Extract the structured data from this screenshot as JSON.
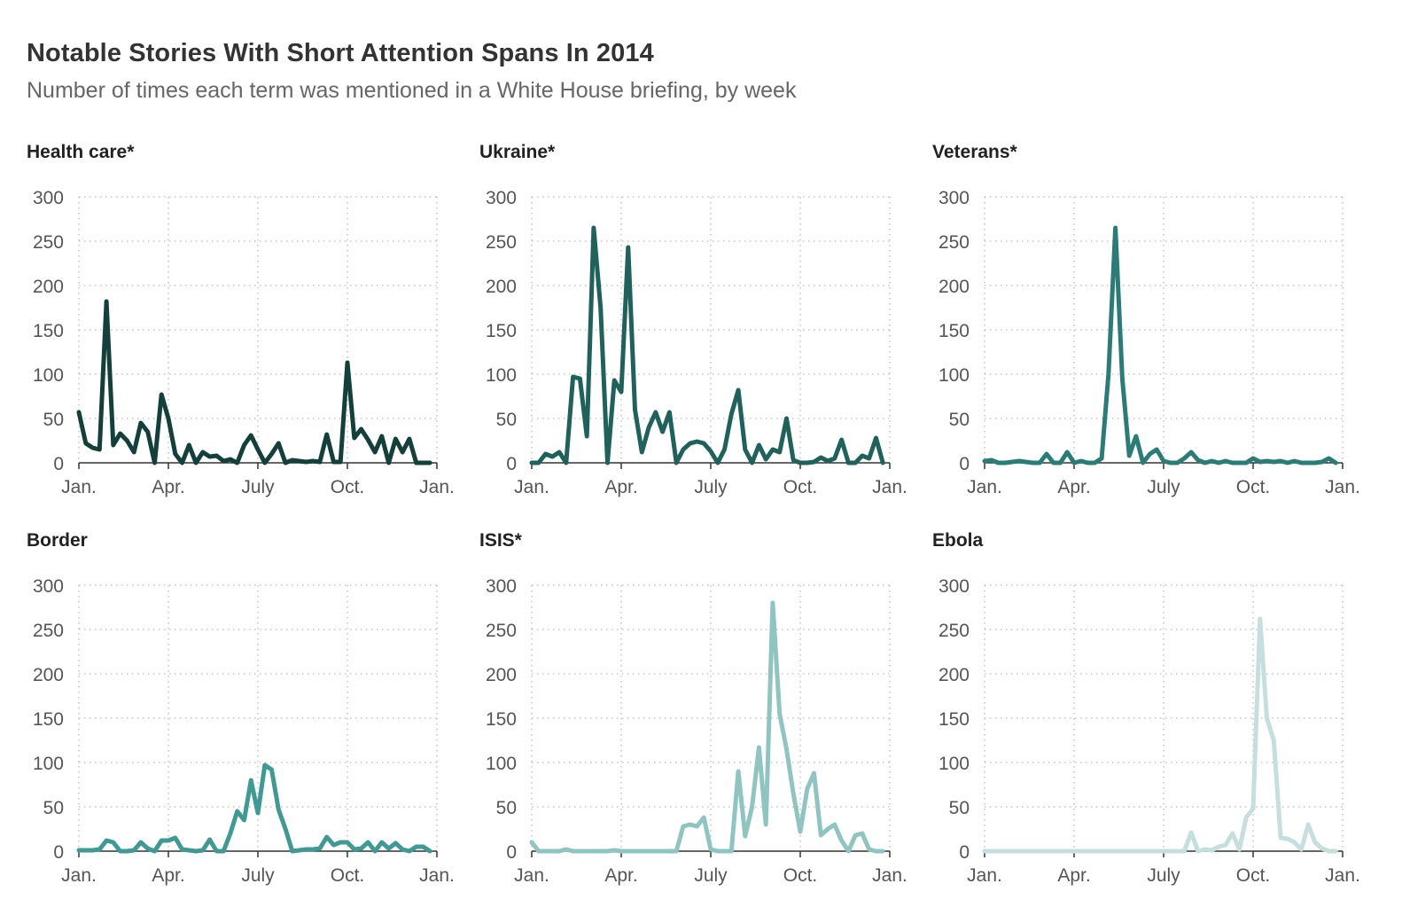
{
  "title": "Notable Stories With Short Attention Spans In 2014",
  "subtitle": "Number of times each term was mentioned in a White House briefing, by week",
  "chart_data": [
    {
      "type": "line",
      "title": "Health care*",
      "color": "#14403b",
      "ylim": [
        0,
        300
      ],
      "yticks": [
        "0",
        "50",
        "100",
        "150",
        "200",
        "250",
        "300"
      ],
      "xticks": [
        "Jan.",
        "Apr.",
        "July",
        "Oct.",
        "Jan."
      ],
      "x_unit": "week of 2014",
      "x": [
        0,
        1,
        2,
        3,
        4,
        5,
        6,
        7,
        8,
        9,
        10,
        11,
        12,
        13,
        14,
        15,
        16,
        17,
        18,
        19,
        20,
        21,
        22,
        23,
        24,
        25,
        26,
        27,
        28,
        29,
        30,
        31,
        32,
        33,
        34,
        35,
        36,
        37,
        38,
        39,
        40,
        41,
        42,
        43,
        44,
        45,
        46,
        47,
        48,
        49,
        50,
        51
      ],
      "values": [
        57,
        22,
        17,
        15,
        182,
        20,
        33,
        25,
        12,
        45,
        35,
        0,
        77,
        50,
        10,
        0,
        20,
        0,
        12,
        7,
        8,
        2,
        4,
        0,
        20,
        31,
        15,
        0,
        10,
        22,
        0,
        3,
        2,
        1,
        2,
        1,
        32,
        1,
        1,
        113,
        28,
        38,
        26,
        12,
        30,
        0,
        27,
        12,
        27,
        0,
        0,
        0
      ]
    },
    {
      "type": "line",
      "title": "Ukraine*",
      "color": "#1e625b",
      "ylim": [
        0,
        300
      ],
      "yticks": [
        "0",
        "50",
        "100",
        "150",
        "200",
        "250",
        "300"
      ],
      "xticks": [
        "Jan.",
        "Apr.",
        "July",
        "Oct.",
        "Jan."
      ],
      "x_unit": "week of 2014",
      "x": [
        0,
        1,
        2,
        3,
        4,
        5,
        6,
        7,
        8,
        9,
        10,
        11,
        12,
        13,
        14,
        15,
        16,
        17,
        18,
        19,
        20,
        21,
        22,
        23,
        24,
        25,
        26,
        27,
        28,
        29,
        30,
        31,
        32,
        33,
        34,
        35,
        36,
        37,
        38,
        39,
        40,
        41,
        42,
        43,
        44,
        45,
        46,
        47,
        48,
        49,
        50,
        51
      ],
      "values": [
        0,
        0,
        10,
        7,
        12,
        0,
        97,
        95,
        30,
        265,
        175,
        0,
        93,
        80,
        243,
        60,
        12,
        40,
        57,
        35,
        57,
        0,
        15,
        22,
        24,
        22,
        13,
        0,
        15,
        55,
        82,
        15,
        0,
        20,
        4,
        15,
        12,
        50,
        3,
        0,
        0,
        1,
        6,
        2,
        5,
        26,
        0,
        0,
        8,
        5,
        28,
        0
      ]
    },
    {
      "type": "line",
      "title": "Veterans*",
      "color": "#2a7d76",
      "ylim": [
        0,
        300
      ],
      "yticks": [
        "0",
        "50",
        "100",
        "150",
        "200",
        "250",
        "300"
      ],
      "xticks": [
        "Jan.",
        "Apr.",
        "July",
        "Oct.",
        "Jan."
      ],
      "x_unit": "week of 2014",
      "x": [
        0,
        1,
        2,
        3,
        4,
        5,
        6,
        7,
        8,
        9,
        10,
        11,
        12,
        13,
        14,
        15,
        16,
        17,
        18,
        19,
        20,
        21,
        22,
        23,
        24,
        25,
        26,
        27,
        28,
        29,
        30,
        31,
        32,
        33,
        34,
        35,
        36,
        37,
        38,
        39,
        40,
        41,
        42,
        43,
        44,
        45,
        46,
        47,
        48,
        49,
        50,
        51
      ],
      "values": [
        2,
        3,
        0,
        0,
        1,
        2,
        1,
        0,
        0,
        10,
        0,
        0,
        12,
        0,
        2,
        0,
        0,
        5,
        100,
        265,
        95,
        8,
        30,
        0,
        10,
        15,
        2,
        0,
        0,
        5,
        12,
        3,
        0,
        2,
        0,
        2,
        0,
        0,
        0,
        5,
        1,
        2,
        1,
        2,
        0,
        2,
        0,
        0,
        0,
        1,
        5,
        0
      ]
    },
    {
      "type": "line",
      "title": "Border",
      "color": "#3f9a94",
      "ylim": [
        0,
        300
      ],
      "yticks": [
        "0",
        "50",
        "100",
        "150",
        "200",
        "250",
        "300"
      ],
      "xticks": [
        "Jan.",
        "Apr.",
        "July",
        "Oct.",
        "Jan."
      ],
      "x_unit": "week of 2014",
      "x": [
        0,
        1,
        2,
        3,
        4,
        5,
        6,
        7,
        8,
        9,
        10,
        11,
        12,
        13,
        14,
        15,
        16,
        17,
        18,
        19,
        20,
        21,
        22,
        23,
        24,
        25,
        26,
        27,
        28,
        29,
        30,
        31,
        32,
        33,
        34,
        35,
        36,
        37,
        38,
        39,
        40,
        41,
        42,
        43,
        44,
        45,
        46,
        47,
        48,
        49,
        50,
        51
      ],
      "values": [
        1,
        1,
        1,
        2,
        12,
        10,
        0,
        0,
        1,
        10,
        3,
        0,
        12,
        12,
        15,
        2,
        1,
        0,
        1,
        13,
        0,
        0,
        20,
        45,
        35,
        80,
        43,
        97,
        92,
        47,
        25,
        0,
        1,
        2,
        2,
        3,
        16,
        7,
        10,
        10,
        2,
        3,
        10,
        0,
        10,
        3,
        9,
        2,
        0,
        5,
        5,
        0
      ]
    },
    {
      "type": "line",
      "title": "ISIS*",
      "color": "#8ec5c0",
      "ylim": [
        0,
        300
      ],
      "yticks": [
        "0",
        "50",
        "100",
        "150",
        "200",
        "250",
        "300"
      ],
      "xticks": [
        "Jan.",
        "Apr.",
        "July",
        "Oct.",
        "Jan."
      ],
      "x_unit": "week of 2014",
      "x": [
        0,
        1,
        2,
        3,
        4,
        5,
        6,
        7,
        8,
        9,
        10,
        11,
        12,
        13,
        14,
        15,
        16,
        17,
        18,
        19,
        20,
        21,
        22,
        23,
        24,
        25,
        26,
        27,
        28,
        29,
        30,
        31,
        32,
        33,
        34,
        35,
        36,
        37,
        38,
        39,
        40,
        41,
        42,
        43,
        44,
        45,
        46,
        47,
        48,
        49,
        50,
        51
      ],
      "values": [
        10,
        0,
        0,
        0,
        0,
        2,
        0,
        0,
        0,
        0,
        0,
        0,
        1,
        0,
        0,
        0,
        0,
        0,
        0,
        0,
        0,
        0,
        28,
        30,
        28,
        38,
        2,
        0,
        0,
        0,
        90,
        17,
        50,
        117,
        30,
        280,
        155,
        115,
        65,
        22,
        70,
        88,
        18,
        25,
        30,
        12,
        0,
        18,
        20,
        2,
        0,
        0
      ]
    },
    {
      "type": "line",
      "title": "Ebola",
      "color": "#c4dfdd",
      "ylim": [
        0,
        300
      ],
      "yticks": [
        "0",
        "50",
        "100",
        "150",
        "200",
        "250",
        "300"
      ],
      "xticks": [
        "Jan.",
        "Apr.",
        "July",
        "Oct.",
        "Jan."
      ],
      "x_unit": "week of 2014",
      "x": [
        0,
        1,
        2,
        3,
        4,
        5,
        6,
        7,
        8,
        9,
        10,
        11,
        12,
        13,
        14,
        15,
        16,
        17,
        18,
        19,
        20,
        21,
        22,
        23,
        24,
        25,
        26,
        27,
        28,
        29,
        30,
        31,
        32,
        33,
        34,
        35,
        36,
        37,
        38,
        39,
        40,
        41,
        42,
        43,
        44,
        45,
        46,
        47,
        48,
        49,
        50,
        51
      ],
      "values": [
        0,
        0,
        0,
        0,
        0,
        0,
        0,
        0,
        0,
        0,
        0,
        0,
        0,
        0,
        0,
        0,
        0,
        0,
        0,
        0,
        0,
        0,
        0,
        0,
        0,
        0,
        0,
        0,
        0,
        0,
        21,
        0,
        2,
        1,
        5,
        7,
        20,
        2,
        38,
        48,
        262,
        150,
        125,
        15,
        14,
        10,
        2,
        30,
        10,
        3,
        0,
        0
      ]
    }
  ]
}
